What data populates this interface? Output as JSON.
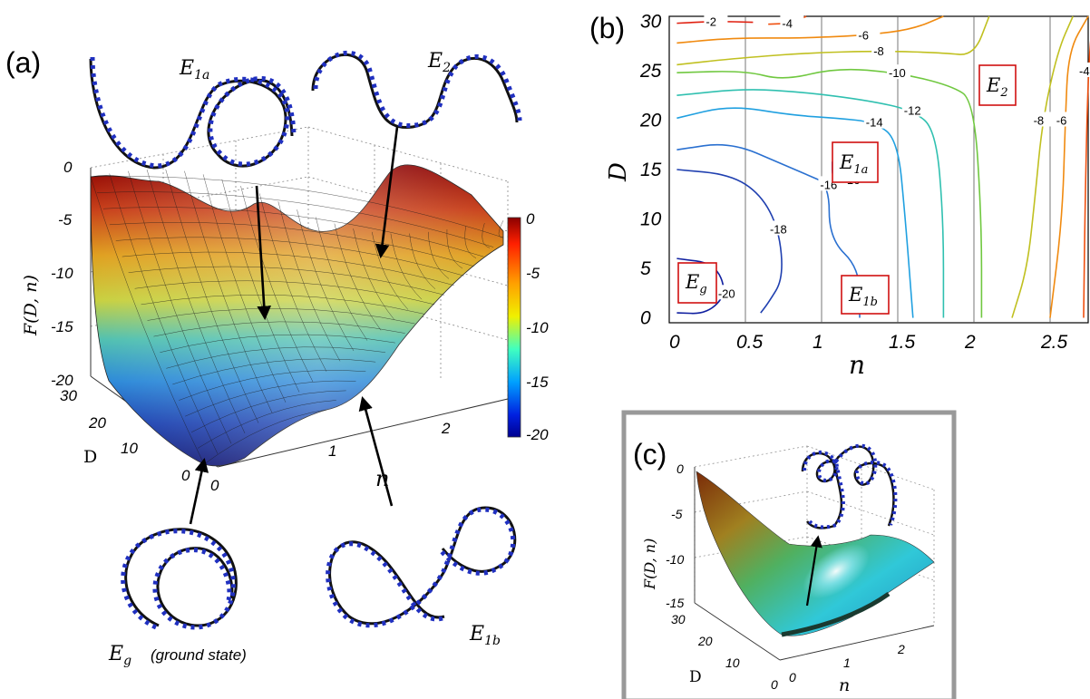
{
  "panel_a": {
    "label": "(a)",
    "z_axis_label": "F(D, n)",
    "z_ticks": [
      "0",
      "-5",
      "-10",
      "-15",
      "-20"
    ],
    "d_axis_label": "D",
    "d_ticks": [
      "30",
      "20",
      "10",
      "0"
    ],
    "n_axis_label": "n",
    "n_ticks": [
      "0",
      "1",
      "2"
    ],
    "colorbar_ticks": [
      "0",
      "-5",
      "-10",
      "-15",
      "-20"
    ],
    "labels": {
      "e1a": "E",
      "e1a_sub": "1a",
      "e2": "E",
      "e2_sub": "2",
      "eg": "E",
      "eg_sub": "g",
      "eg_note": "(ground state)",
      "e1b": "E",
      "e1b_sub": "1b"
    }
  },
  "panel_b": {
    "label": "(b)",
    "x_axis_label": "n",
    "y_axis_label": "D",
    "boxes": {
      "e1a": "E",
      "e1a_sub": "1a",
      "e2": "E",
      "e2_sub": "2",
      "eg": "E",
      "eg_sub": "g",
      "e1b": "E",
      "e1b_sub": "1b"
    }
  },
  "panel_c": {
    "label": "(c)",
    "z_axis_label": "F(D, n)",
    "z_ticks": [
      "0",
      "-5",
      "-10",
      "-15"
    ],
    "d_axis_label": "D",
    "d_ticks": [
      "30",
      "20",
      "10",
      "0"
    ],
    "n_axis_label": "n",
    "n_ticks": [
      "0",
      "1",
      "2"
    ]
  },
  "chart_data": [
    {
      "type": "contour",
      "x": [
        0,
        0.5,
        1,
        1.5,
        2,
        2.5
      ],
      "x_ticks": [
        "0",
        "0.5",
        "1",
        "1.5",
        "2",
        "2.5"
      ],
      "y_ticks": [
        "0",
        "5",
        "10",
        "15",
        "20",
        "25",
        "30"
      ],
      "xlim": [
        0,
        2.75
      ],
      "ylim": [
        -0.5,
        30.5
      ],
      "xlabel": "n",
      "ylabel": "D",
      "vertical_gridlines": [
        0.5,
        1,
        1.5,
        2,
        2.5
      ],
      "contour_levels": [
        {
          "level": -2,
          "label": "-2",
          "color": "#e02010",
          "points": [
            [
              0.05,
              29.8
            ],
            [
              0.3,
              30
            ],
            [
              0.55,
              29.9
            ]
          ]
        },
        {
          "level": -4,
          "label": "-4",
          "color": "#f05010",
          "points": [
            [
              0.65,
              29.7
            ],
            [
              0.8,
              29.8
            ],
            [
              0.9,
              30.5
            ]
          ]
        },
        {
          "level": -6,
          "label": "-6",
          "color": "#f08a10",
          "points": [
            [
              0.05,
              27.8
            ],
            [
              0.4,
              28.3
            ],
            [
              0.9,
              28.3
            ],
            [
              1.3,
              28.6
            ],
            [
              1.6,
              29.2
            ],
            [
              1.8,
              30.5
            ]
          ]
        },
        {
          "level": -8,
          "label": "-8",
          "color": "#c0c020",
          "points": [
            [
              0.05,
              25.6
            ],
            [
              0.4,
              26.2
            ],
            [
              0.9,
              26.8
            ],
            [
              1.4,
              27.0
            ],
            [
              1.8,
              26.8
            ],
            [
              2.0,
              26.5
            ],
            [
              2.1,
              30.5
            ]
          ]
        },
        {
          "level": -10,
          "label": "-10",
          "color": "#70c840",
          "points": [
            [
              0.05,
              24.8
            ],
            [
              0.5,
              25.0
            ],
            [
              0.75,
              24.0
            ],
            [
              1.1,
              25.3
            ],
            [
              1.5,
              24.8
            ],
            [
              1.85,
              23.5
            ],
            [
              2.0,
              22
            ],
            [
              2.05,
              10
            ],
            [
              2.05,
              0
            ]
          ]
        },
        {
          "level": -12,
          "label": "-12",
          "color": "#30c0b0",
          "points": [
            [
              0.05,
              22.5
            ],
            [
              0.5,
              23.2
            ],
            [
              0.9,
              22.8
            ],
            [
              1.3,
              22.0
            ],
            [
              1.6,
              21.0
            ],
            [
              1.75,
              19
            ],
            [
              1.8,
              10
            ],
            [
              1.8,
              0
            ]
          ]
        },
        {
          "level": -14,
          "label": "-14",
          "color": "#20a0e0",
          "points": [
            [
              0.05,
              20.2
            ],
            [
              0.4,
              21.5
            ],
            [
              0.8,
              20.5
            ],
            [
              1.1,
              20.2
            ],
            [
              1.35,
              19.8
            ],
            [
              1.5,
              18
            ],
            [
              1.55,
              10
            ],
            [
              1.6,
              0
            ]
          ]
        },
        {
          "level": -16,
          "label": "-16",
          "color": "#2a70d0",
          "points": [
            [
              0.05,
              17.0
            ],
            [
              0.4,
              17.8
            ],
            [
              0.75,
              15.5
            ],
            [
              0.9,
              14.5
            ],
            [
              1.05,
              13.5
            ],
            [
              1.05,
              8
            ],
            [
              1.25,
              5
            ],
            [
              1.25,
              0
            ]
          ]
        },
        {
          "level": -16,
          "label": "-16",
          "color": "#2a70d0",
          "points": [
            [
              1.07,
              15.8
            ],
            [
              1.2,
              16.2
            ],
            [
              1.2,
              14.0
            ],
            [
              1.07,
              14.0
            ],
            [
              1.07,
              15.8
            ]
          ]
        },
        {
          "level": -18,
          "label": "-18",
          "color": "#2040b0",
          "points": [
            [
              0.05,
              15.0
            ],
            [
              0.4,
              14.5
            ],
            [
              0.6,
              12.5
            ],
            [
              0.72,
              9
            ],
            [
              0.75,
              4
            ],
            [
              0.65,
              1.5
            ],
            [
              0.6,
              0.5
            ]
          ]
        },
        {
          "level": -20,
          "label": "-20",
          "color": "#1020a0",
          "points": [
            [
              0.05,
              6.0
            ],
            [
              0.3,
              5.5
            ],
            [
              0.38,
              2.5
            ],
            [
              0.25,
              0.4
            ],
            [
              0.05,
              0.5
            ]
          ]
        },
        {
          "level": -8,
          "label": "-8",
          "color": "#c0c020",
          "points": [
            [
              2.25,
              0
            ],
            [
              2.35,
              5
            ],
            [
              2.4,
              12
            ],
            [
              2.45,
              20
            ],
            [
              2.55,
              27
            ],
            [
              2.65,
              30.5
            ]
          ]
        },
        {
          "level": -6,
          "label": "-6",
          "color": "#f08a10",
          "points": [
            [
              2.5,
              0
            ],
            [
              2.58,
              10
            ],
            [
              2.6,
              20
            ],
            [
              2.62,
              27
            ],
            [
              2.75,
              30.5
            ]
          ]
        },
        {
          "level": -4,
          "label": "-4",
          "color": "#f05010",
          "points": [
            [
              2.72,
              0
            ],
            [
              2.73,
              12
            ],
            [
              2.75,
              25
            ],
            [
              2.78,
              30.5
            ]
          ]
        }
      ]
    }
  ]
}
